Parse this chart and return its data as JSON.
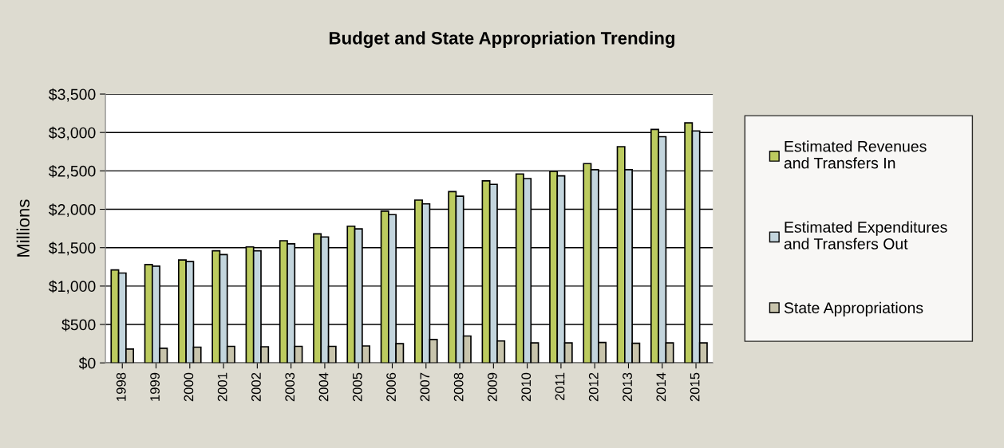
{
  "chart_data": {
    "type": "bar",
    "title": "Budget and State Appropriation Trending",
    "ylabel": "Millions",
    "categories": [
      "1998",
      "1999",
      "2000",
      "2001",
      "2002",
      "2003",
      "2004",
      "2005",
      "2006",
      "2007",
      "2008",
      "2009",
      "2010",
      "2011",
      "2012",
      "2013",
      "2014",
      "2015"
    ],
    "series": [
      {
        "name": "Estimated Revenues and Transfers In",
        "color": "#bccb5f",
        "values": [
          1210,
          1280,
          1340,
          1460,
          1510,
          1590,
          1680,
          1780,
          1975,
          2120,
          2230,
          2370,
          2460,
          2495,
          2595,
          2815,
          3040,
          3125
        ]
      },
      {
        "name": "Estimated Expenditures and Transfers Out",
        "color": "#c3d5dd",
        "values": [
          1170,
          1260,
          1320,
          1410,
          1460,
          1550,
          1640,
          1745,
          1930,
          2070,
          2170,
          2325,
          2400,
          2435,
          2515,
          2515,
          2945,
          3020
        ]
      },
      {
        "name": "State Appropriations",
        "color": "#c8c4ac",
        "values": [
          180,
          190,
          205,
          215,
          210,
          215,
          215,
          220,
          250,
          305,
          350,
          285,
          260,
          260,
          265,
          255,
          260,
          260
        ]
      }
    ],
    "ylim": [
      0,
      3500
    ],
    "yticks": [
      {
        "value": 0,
        "label": "$0"
      },
      {
        "value": 500,
        "label": "$500"
      },
      {
        "value": 1000,
        "label": "$1,000"
      },
      {
        "value": 1500,
        "label": "$1,500"
      },
      {
        "value": 2000,
        "label": "$2,000"
      },
      {
        "value": 2500,
        "label": "$2,500"
      },
      {
        "value": 3000,
        "label": "$3,000"
      },
      {
        "value": 3500,
        "label": "$3,500"
      }
    ],
    "grid": "y",
    "legend": "right"
  }
}
